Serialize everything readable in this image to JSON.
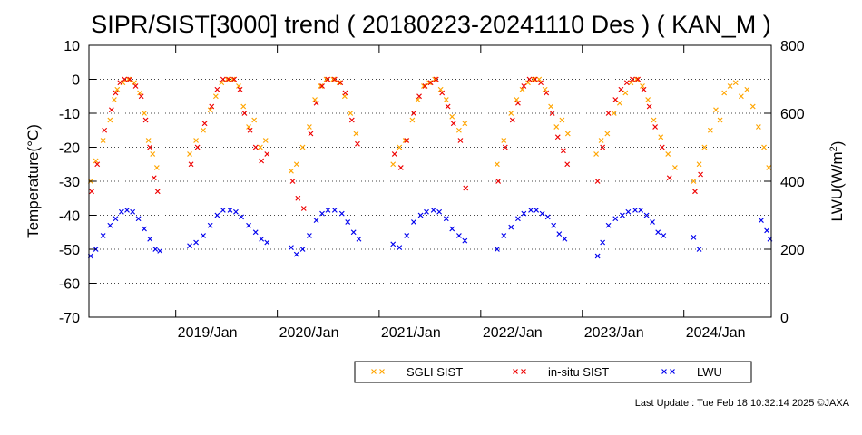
{
  "chart_data": {
    "type": "scatter",
    "title": "SIPR/SIST[3000] trend ( 20180223-20241110 Des ) ( KAN_M )",
    "ylabel": "Temperature(°C)",
    "y2label_main": "LWU(W/m",
    "y2label_sup": "2",
    "y2label_end": ")",
    "xlim": [
      "2018-02-23",
      "2024-11-10"
    ],
    "ylim": [
      -70,
      10
    ],
    "y2lim": [
      0,
      800
    ],
    "yticks": [
      10,
      0,
      -10,
      -20,
      -30,
      -40,
      -50,
      -60,
      -70
    ],
    "y2ticks": [
      800,
      600,
      400,
      200,
      0
    ],
    "xticks": [
      {
        "date": "2019-01-01",
        "label": "2019/Jan"
      },
      {
        "date": "2020-01-01",
        "label": "2020/Jan"
      },
      {
        "date": "2021-01-01",
        "label": "2021/Jan"
      },
      {
        "date": "2022-01-01",
        "label": "2022/Jan"
      },
      {
        "date": "2023-01-01",
        "label": "2023/Jan"
      },
      {
        "date": "2024-01-01",
        "label": "2024/Jan"
      }
    ],
    "grid": "horizontal dotted",
    "legend_position": "bottom",
    "series": [
      {
        "name": "SGLI SIST",
        "color": "#ffa500",
        "axis": "left",
        "points": [
          [
            "2018-03-01",
            -30
          ],
          [
            "2018-03-20",
            -24
          ],
          [
            "2018-04-15",
            -18
          ],
          [
            "2018-05-10",
            -12
          ],
          [
            "2018-05-25",
            -6
          ],
          [
            "2018-06-05",
            -3
          ],
          [
            "2018-06-25",
            -1
          ],
          [
            "2018-07-15",
            0
          ],
          [
            "2018-08-05",
            -1
          ],
          [
            "2018-08-25",
            -4
          ],
          [
            "2018-09-10",
            -10
          ],
          [
            "2018-09-25",
            -18
          ],
          [
            "2018-10-10",
            -22
          ],
          [
            "2018-10-25",
            -26
          ],
          [
            "2019-02-20",
            -22
          ],
          [
            "2019-03-15",
            -18
          ],
          [
            "2019-04-10",
            -15
          ],
          [
            "2019-05-05",
            -9
          ],
          [
            "2019-05-25",
            -5
          ],
          [
            "2019-06-15",
            -1
          ],
          [
            "2019-07-05",
            0
          ],
          [
            "2019-07-25",
            0
          ],
          [
            "2019-08-15",
            -2
          ],
          [
            "2019-09-01",
            -8
          ],
          [
            "2019-09-20",
            -14
          ],
          [
            "2019-10-10",
            -12
          ],
          [
            "2019-11-01",
            -20
          ],
          [
            "2019-11-20",
            -18
          ],
          [
            "2020-02-20",
            -27
          ],
          [
            "2020-03-10",
            -25
          ],
          [
            "2020-04-01",
            -20
          ],
          [
            "2020-04-25",
            -14
          ],
          [
            "2020-05-15",
            -6
          ],
          [
            "2020-06-05",
            -2
          ],
          [
            "2020-06-25",
            0
          ],
          [
            "2020-07-20",
            0
          ],
          [
            "2020-08-10",
            -1
          ],
          [
            "2020-08-30",
            -5
          ],
          [
            "2020-09-20",
            -10
          ],
          [
            "2020-10-10",
            -16
          ],
          [
            "2021-02-20",
            -25
          ],
          [
            "2021-03-15",
            -20
          ],
          [
            "2021-04-05",
            -18
          ],
          [
            "2021-04-30",
            -12
          ],
          [
            "2021-05-20",
            -6
          ],
          [
            "2021-06-10",
            -2
          ],
          [
            "2021-06-30",
            -1
          ],
          [
            "2021-07-20",
            0
          ],
          [
            "2021-08-10",
            -3
          ],
          [
            "2021-08-30",
            -6
          ],
          [
            "2021-09-20",
            -11
          ],
          [
            "2021-10-15",
            -15
          ],
          [
            "2021-11-05",
            -13
          ],
          [
            "2022-03-01",
            -25
          ],
          [
            "2022-03-25",
            -18
          ],
          [
            "2022-04-20",
            -10
          ],
          [
            "2022-05-10",
            -6
          ],
          [
            "2022-05-30",
            -3
          ],
          [
            "2022-06-20",
            -1
          ],
          [
            "2022-07-10",
            0
          ],
          [
            "2022-07-30",
            0
          ],
          [
            "2022-08-20",
            -3
          ],
          [
            "2022-09-10",
            -8
          ],
          [
            "2022-09-30",
            -14
          ],
          [
            "2022-10-20",
            -12
          ],
          [
            "2022-11-10",
            -16
          ],
          [
            "2023-02-20",
            -22
          ],
          [
            "2023-03-10",
            -18
          ],
          [
            "2023-04-01",
            -16
          ],
          [
            "2023-04-25",
            -10
          ],
          [
            "2023-05-15",
            -7
          ],
          [
            "2023-06-05",
            -4
          ],
          [
            "2023-06-25",
            -1
          ],
          [
            "2023-07-15",
            0
          ],
          [
            "2023-08-05",
            -2
          ],
          [
            "2023-08-25",
            -6
          ],
          [
            "2023-09-15",
            -12
          ],
          [
            "2023-10-10",
            -17
          ],
          [
            "2023-11-05",
            -22
          ],
          [
            "2023-11-30",
            -26
          ],
          [
            "2024-02-05",
            -30
          ],
          [
            "2024-02-25",
            -25
          ],
          [
            "2024-03-15",
            -20
          ],
          [
            "2024-04-05",
            -15
          ],
          [
            "2024-04-25",
            -9
          ],
          [
            "2024-05-10",
            -12
          ],
          [
            "2024-05-25",
            -4
          ],
          [
            "2024-06-15",
            -2
          ],
          [
            "2024-07-05",
            -1
          ],
          [
            "2024-07-25",
            -5
          ],
          [
            "2024-08-15",
            -3
          ],
          [
            "2024-09-05",
            -8
          ],
          [
            "2024-09-25",
            -14
          ],
          [
            "2024-10-15",
            -20
          ],
          [
            "2024-11-01",
            -26
          ]
        ]
      },
      {
        "name": "in-situ SIST",
        "color": "#ee0000",
        "axis": "left",
        "points": [
          [
            "2018-03-05",
            -33
          ],
          [
            "2018-03-25",
            -25
          ],
          [
            "2018-04-20",
            -15
          ],
          [
            "2018-05-15",
            -9
          ],
          [
            "2018-05-30",
            -4
          ],
          [
            "2018-06-15",
            -1
          ],
          [
            "2018-07-01",
            0
          ],
          [
            "2018-07-20",
            0
          ],
          [
            "2018-08-10",
            -2
          ],
          [
            "2018-08-30",
            -5
          ],
          [
            "2018-09-15",
            -12
          ],
          [
            "2018-09-30",
            -20
          ],
          [
            "2018-10-15",
            -29
          ],
          [
            "2018-10-28",
            -33
          ],
          [
            "2019-02-25",
            -25
          ],
          [
            "2019-03-20",
            -20
          ],
          [
            "2019-04-15",
            -13
          ],
          [
            "2019-05-10",
            -8
          ],
          [
            "2019-05-30",
            -3
          ],
          [
            "2019-06-20",
            0
          ],
          [
            "2019-07-10",
            0
          ],
          [
            "2019-07-30",
            0
          ],
          [
            "2019-08-20",
            -3
          ],
          [
            "2019-09-05",
            -10
          ],
          [
            "2019-09-25",
            -15
          ],
          [
            "2019-10-15",
            -20
          ],
          [
            "2019-11-05",
            -24
          ],
          [
            "2019-11-25",
            -22
          ],
          [
            "2020-02-25",
            -30
          ],
          [
            "2020-03-15",
            -35
          ],
          [
            "2020-04-05",
            -38
          ],
          [
            "2020-04-30",
            -16
          ],
          [
            "2020-05-20",
            -7
          ],
          [
            "2020-06-10",
            -2
          ],
          [
            "2020-06-30",
            0
          ],
          [
            "2020-07-25",
            0
          ],
          [
            "2020-08-15",
            -1
          ],
          [
            "2020-09-01",
            -4
          ],
          [
            "2020-09-25",
            -12
          ],
          [
            "2020-10-15",
            -19
          ],
          [
            "2021-02-25",
            -22
          ],
          [
            "2021-03-20",
            -26
          ],
          [
            "2021-04-10",
            -18
          ],
          [
            "2021-05-05",
            -10
          ],
          [
            "2021-05-25",
            -5
          ],
          [
            "2021-06-15",
            -2
          ],
          [
            "2021-07-05",
            -1
          ],
          [
            "2021-07-25",
            0
          ],
          [
            "2021-08-15",
            -4
          ],
          [
            "2021-09-05",
            -8
          ],
          [
            "2021-09-25",
            -13
          ],
          [
            "2021-10-20",
            -18
          ],
          [
            "2021-11-08",
            -32
          ],
          [
            "2022-03-05",
            -30
          ],
          [
            "2022-03-30",
            -20
          ],
          [
            "2022-04-25",
            -12
          ],
          [
            "2022-05-15",
            -7
          ],
          [
            "2022-06-05",
            -2
          ],
          [
            "2022-06-25",
            0
          ],
          [
            "2022-07-15",
            0
          ],
          [
            "2022-08-05",
            -1
          ],
          [
            "2022-08-25",
            -4
          ],
          [
            "2022-09-15",
            -10
          ],
          [
            "2022-10-05",
            -17
          ],
          [
            "2022-10-25",
            -21
          ],
          [
            "2022-11-08",
            -25
          ],
          [
            "2023-02-25",
            -30
          ],
          [
            "2023-03-15",
            -20
          ],
          [
            "2023-04-05",
            -10
          ],
          [
            "2023-04-30",
            -6
          ],
          [
            "2023-05-20",
            -3
          ],
          [
            "2023-06-10",
            -1
          ],
          [
            "2023-06-30",
            0
          ],
          [
            "2023-07-20",
            0
          ],
          [
            "2023-08-10",
            -3
          ],
          [
            "2023-08-30",
            -8
          ],
          [
            "2023-09-20",
            -14
          ],
          [
            "2023-10-15",
            -20
          ],
          [
            "2023-11-10",
            -29
          ],
          [
            "2024-02-10",
            -33
          ],
          [
            "2024-03-01",
            -28
          ]
        ]
      },
      {
        "name": "LWU",
        "color": "#0000ee",
        "axis": "right",
        "points": [
          [
            "2018-03-01",
            180
          ],
          [
            "2018-03-20",
            200
          ],
          [
            "2018-04-15",
            240
          ],
          [
            "2018-05-10",
            270
          ],
          [
            "2018-05-30",
            290
          ],
          [
            "2018-06-20",
            310
          ],
          [
            "2018-07-10",
            315
          ],
          [
            "2018-07-30",
            310
          ],
          [
            "2018-08-20",
            290
          ],
          [
            "2018-09-10",
            260
          ],
          [
            "2018-09-30",
            230
          ],
          [
            "2018-10-20",
            200
          ],
          [
            "2018-11-05",
            195
          ],
          [
            "2019-02-20",
            210
          ],
          [
            "2019-03-15",
            220
          ],
          [
            "2019-04-10",
            240
          ],
          [
            "2019-05-05",
            270
          ],
          [
            "2019-05-30",
            300
          ],
          [
            "2019-06-20",
            315
          ],
          [
            "2019-07-15",
            315
          ],
          [
            "2019-08-05",
            310
          ],
          [
            "2019-08-25",
            295
          ],
          [
            "2019-09-20",
            270
          ],
          [
            "2019-10-15",
            250
          ],
          [
            "2019-11-05",
            230
          ],
          [
            "2019-11-25",
            220
          ],
          [
            "2020-02-20",
            205
          ],
          [
            "2020-03-10",
            185
          ],
          [
            "2020-04-01",
            200
          ],
          [
            "2020-04-25",
            240
          ],
          [
            "2020-05-20",
            285
          ],
          [
            "2020-06-10",
            305
          ],
          [
            "2020-07-01",
            315
          ],
          [
            "2020-07-25",
            315
          ],
          [
            "2020-08-20",
            305
          ],
          [
            "2020-09-10",
            280
          ],
          [
            "2020-10-01",
            250
          ],
          [
            "2020-10-20",
            230
          ],
          [
            "2021-02-20",
            215
          ],
          [
            "2021-03-15",
            205
          ],
          [
            "2021-04-10",
            240
          ],
          [
            "2021-05-05",
            280
          ],
          [
            "2021-05-30",
            300
          ],
          [
            "2021-06-20",
            310
          ],
          [
            "2021-07-15",
            315
          ],
          [
            "2021-08-05",
            310
          ],
          [
            "2021-08-30",
            290
          ],
          [
            "2021-09-20",
            260
          ],
          [
            "2021-10-15",
            240
          ],
          [
            "2021-11-05",
            225
          ],
          [
            "2022-03-01",
            200
          ],
          [
            "2022-03-25",
            240
          ],
          [
            "2022-04-20",
            265
          ],
          [
            "2022-05-15",
            290
          ],
          [
            "2022-06-05",
            305
          ],
          [
            "2022-06-30",
            315
          ],
          [
            "2022-07-20",
            315
          ],
          [
            "2022-08-10",
            305
          ],
          [
            "2022-08-30",
            295
          ],
          [
            "2022-09-20",
            270
          ],
          [
            "2022-10-10",
            245
          ],
          [
            "2022-10-30",
            230
          ],
          [
            "2023-02-25",
            180
          ],
          [
            "2023-03-15",
            220
          ],
          [
            "2023-04-05",
            270
          ],
          [
            "2023-04-30",
            290
          ],
          [
            "2023-05-25",
            300
          ],
          [
            "2023-06-15",
            310
          ],
          [
            "2023-07-10",
            315
          ],
          [
            "2023-07-30",
            315
          ],
          [
            "2023-08-20",
            300
          ],
          [
            "2023-09-10",
            280
          ],
          [
            "2023-09-30",
            250
          ],
          [
            "2023-10-20",
            240
          ],
          [
            "2024-02-05",
            235
          ],
          [
            "2024-02-25",
            200
          ],
          [
            "2024-10-05",
            285
          ],
          [
            "2024-10-25",
            255
          ],
          [
            "2024-11-05",
            230
          ]
        ]
      }
    ]
  },
  "footer": {
    "last_update": "Last Update : Tue Feb 18 10:32:14 2025  ©JAXA"
  }
}
